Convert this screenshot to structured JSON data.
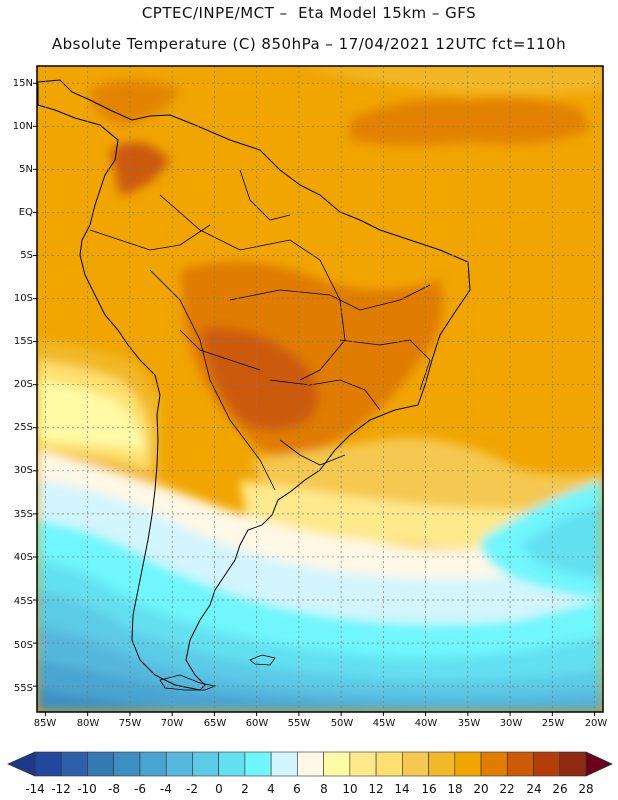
{
  "header": {
    "line1": "CPTEC/INPE/MCT –  Eta Model 15km – GFS",
    "line2": "Absolute Temperature (C) 850hPa – 17/04/2021 12UTC fct=110h"
  },
  "map": {
    "lat_range": [
      -58,
      17
    ],
    "lon_range": [
      -86,
      -19
    ],
    "lat_ticks": [
      "15N",
      "10N",
      "5N",
      "EQ",
      "5S",
      "10S",
      "15S",
      "20S",
      "25S",
      "30S",
      "35S",
      "40S",
      "45S",
      "50S",
      "55S"
    ],
    "lat_tick_values": [
      15,
      10,
      5,
      0,
      -5,
      -10,
      -15,
      -20,
      -25,
      -30,
      -35,
      -40,
      -45,
      -50,
      -55
    ],
    "lon_ticks": [
      "85W",
      "80W",
      "75W",
      "70W",
      "65W",
      "60W",
      "55W",
      "50W",
      "45W",
      "40W",
      "35W",
      "30W",
      "25W",
      "20W"
    ],
    "lon_tick_values": [
      -85,
      -80,
      -75,
      -70,
      -65,
      -60,
      -55,
      -50,
      -45,
      -40,
      -35,
      -30,
      -25,
      -20
    ],
    "grid": true,
    "background_color": "#f0a500"
  },
  "colorbar": {
    "labels": [
      "-14",
      "-12",
      "-10",
      "-8",
      "-6",
      "-4",
      "-2",
      "0",
      "2",
      "4",
      "6",
      "8",
      "10",
      "12",
      "14",
      "16",
      "18",
      "20",
      "22",
      "24",
      "26",
      "28"
    ],
    "colors": [
      "#22479b",
      "#2d60a8",
      "#3478b4",
      "#3d8fc2",
      "#4aa4d0",
      "#57b7dc",
      "#5ccbe6",
      "#63e0f0",
      "#6ff6fd",
      "#d3f5fd",
      "#fff8e6",
      "#fffaa6",
      "#fee98c",
      "#fde070",
      "#f5c850",
      "#f1b828",
      "#f0a500",
      "#e07c00",
      "#cc5a08",
      "#b23e0a",
      "#8e2a12",
      "#6d1714"
    ],
    "low_arrow_color": "#1d3a8a",
    "high_arrow_color": "#6b001c"
  }
}
